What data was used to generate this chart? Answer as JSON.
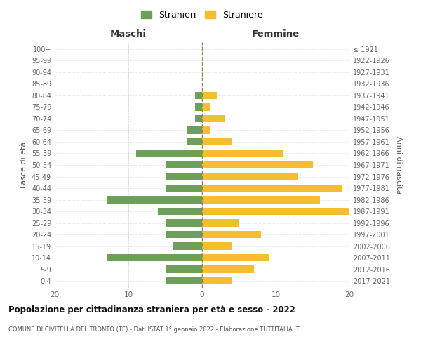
{
  "age_groups": [
    "0-4",
    "5-9",
    "10-14",
    "15-19",
    "20-24",
    "25-29",
    "30-34",
    "35-39",
    "40-44",
    "45-49",
    "50-54",
    "55-59",
    "60-64",
    "65-69",
    "70-74",
    "75-79",
    "80-84",
    "85-89",
    "90-94",
    "95-99",
    "100+"
  ],
  "birth_years": [
    "2017-2021",
    "2012-2016",
    "2007-2011",
    "2002-2006",
    "1997-2001",
    "1992-1996",
    "1987-1991",
    "1982-1986",
    "1977-1981",
    "1972-1976",
    "1967-1971",
    "1962-1966",
    "1957-1961",
    "1952-1956",
    "1947-1951",
    "1942-1946",
    "1937-1941",
    "1932-1936",
    "1927-1931",
    "1922-1926",
    "≤ 1921"
  ],
  "maschi": [
    5,
    5,
    13,
    4,
    5,
    5,
    6,
    13,
    5,
    5,
    5,
    9,
    2,
    2,
    1,
    1,
    1,
    0,
    0,
    0,
    0
  ],
  "femmine": [
    4,
    7,
    9,
    4,
    8,
    5,
    20,
    16,
    19,
    13,
    15,
    11,
    4,
    1,
    3,
    1,
    2,
    0,
    0,
    0,
    0
  ],
  "color_maschi": "#6d9e5a",
  "color_femmine": "#f5be2e",
  "title": "Popolazione per cittadinanza straniera per età e sesso - 2022",
  "subtitle": "COMUNE DI CIVITELLA DEL TRONTO (TE) - Dati ISTAT 1° gennaio 2022 - Elaborazione TUTTITALIA.IT",
  "xlabel_left": "Maschi",
  "xlabel_right": "Femmine",
  "ylabel_left": "Fasce di età",
  "ylabel_right": "Anni di nascita",
  "legend_maschi": "Stranieri",
  "legend_femmine": "Straniere",
  "xlim": 20,
  "background_color": "#ffffff",
  "grid_color": "#cccccc",
  "dashed_line_color": "#8a8a5c"
}
